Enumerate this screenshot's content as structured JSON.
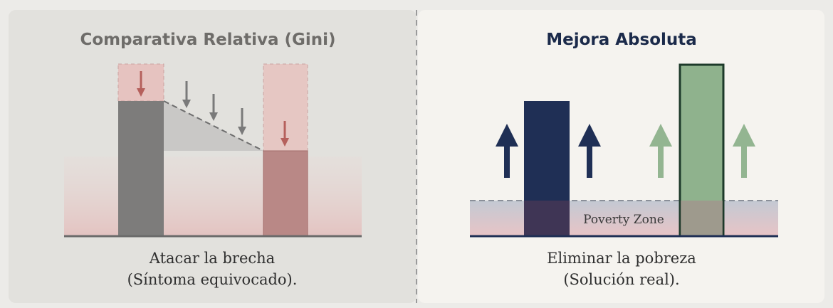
{
  "left_panel": {
    "title": "Comparativa Relativa (Gini)",
    "caption": [
      "Atacar la brecha",
      "(Síntoma equivocado)."
    ]
  },
  "right_panel": {
    "title": "Mejora Absoluta",
    "zone_label": "Poverty Zone",
    "caption": [
      "Eliminar la pobreza",
      "(Solución real)."
    ]
  }
}
